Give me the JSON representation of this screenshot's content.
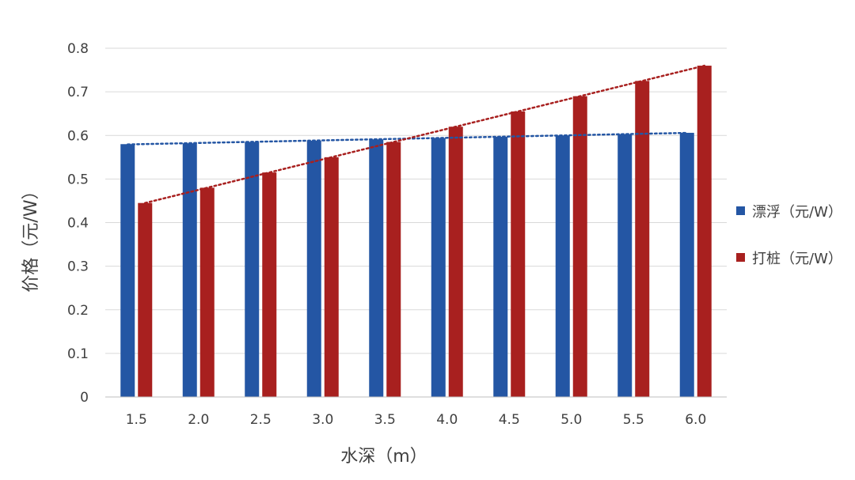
{
  "chart_data": {
    "type": "bar",
    "xlabel": "水深（m）",
    "ylabel": "价格（元/W）",
    "categories": [
      "1.5",
      "2.0",
      "2.5",
      "3.0",
      "3.5",
      "4.0",
      "4.5",
      "5.0",
      "5.5",
      "6.0"
    ],
    "yticks": [
      "0",
      "0.1",
      "0.2",
      "0.3",
      "0.4",
      "0.5",
      "0.6",
      "0.7",
      "0.8"
    ],
    "ylim": [
      0,
      0.8
    ],
    "grid": true,
    "legend_position": "right",
    "series": [
      {
        "name": "漂浮（元/W）",
        "color": "#2456a4",
        "values": [
          0.58,
          0.582,
          0.585,
          0.588,
          0.591,
          0.594,
          0.597,
          0.6,
          0.603,
          0.606
        ],
        "trendline": true
      },
      {
        "name": "打桩（元/W）",
        "color": "#a8201f",
        "values": [
          0.445,
          0.48,
          0.515,
          0.55,
          0.585,
          0.62,
          0.655,
          0.69,
          0.725,
          0.76
        ],
        "trendline": true
      }
    ]
  }
}
